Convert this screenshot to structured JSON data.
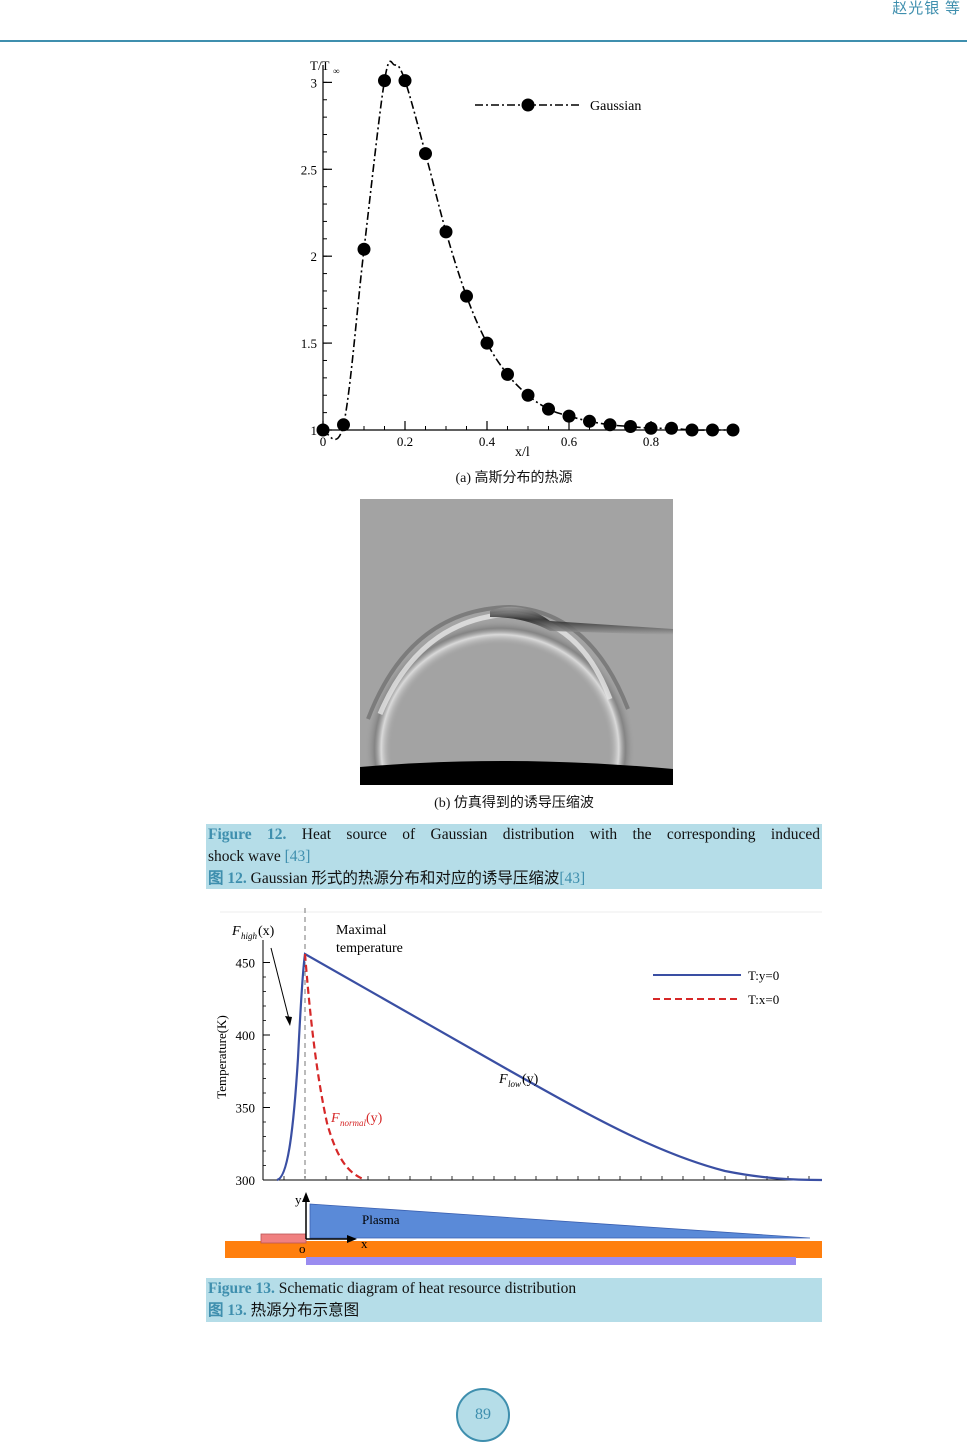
{
  "header": {
    "author": "赵光银 等"
  },
  "figure12": {
    "subplot_a": {
      "ylabel_main": "T/T",
      "ylabel_sub": "∞",
      "xlabel": "x/l",
      "legend": "Gaussian",
      "yticks": [
        "3",
        "2.5",
        "2",
        "1.5",
        "1"
      ],
      "xticks": [
        "0",
        "0.2",
        "0.4",
        "0.6",
        "0.8"
      ],
      "caption": "(a)  高斯分布的热源"
    },
    "subplot_b": {
      "caption": "(b)  仿真得到的诱导压缩波"
    },
    "caption_en_label": "Figure 12.",
    "caption_en_text": " Heat source of Gaussian distribution with the corresponding induced",
    "caption_en_text2": "shock wave ",
    "caption_en_ref": "[43]",
    "caption_cn_label": "图 12.",
    "caption_cn_text": " Gaussian 形式的热源分布和对应的诱导压缩波",
    "caption_cn_ref": "[43]"
  },
  "figure13": {
    "ylabel": "Temperature(K)",
    "yticks": [
      "450",
      "400",
      "350",
      "300"
    ],
    "legend": [
      "T:y=0",
      "T:x=0"
    ],
    "ann_fhigh": "F",
    "ann_fhigh_sub": "high",
    "ann_fhigh_arg": "(x)",
    "ann_max1": "Maximal",
    "ann_max2": "temperature",
    "ann_flow": "F",
    "ann_flow_sub": "low",
    "ann_flow_arg": "(y)",
    "ann_fnormal": "F",
    "ann_fnormal_sub": "normal",
    "ann_fnormal_arg": "(y)",
    "schem_y": "y",
    "schem_x": "x",
    "schem_o": "o",
    "schem_plasma": "Plasma",
    "caption_en_label": "Figure 13.",
    "caption_en_text": " Schematic diagram of heat resource distribution",
    "caption_cn_label": "图 13.",
    "caption_cn_text": "  热源分布示意图"
  },
  "page_number": "89",
  "chart_data": [
    {
      "type": "line",
      "x": [
        0,
        0.05,
        0.1,
        0.15,
        0.2,
        0.25,
        0.3,
        0.35,
        0.4,
        0.45,
        0.5,
        0.55,
        0.6,
        0.65,
        0.7,
        0.75,
        0.8,
        0.85,
        0.9,
        0.95,
        1.0
      ],
      "series": [
        {
          "name": "Gaussian",
          "values": [
            1.0,
            1.03,
            2.04,
            3.01,
            3.01,
            2.59,
            2.14,
            1.77,
            1.5,
            1.32,
            1.2,
            1.12,
            1.08,
            1.05,
            1.03,
            1.02,
            1.01,
            1.01,
            1.0,
            1.0,
            1.0
          ]
        }
      ],
      "xlabel": "x/l",
      "ylabel": "T/T∞",
      "xlim": [
        0,
        1.0
      ],
      "ylim": [
        1,
        3.1
      ],
      "legend": "top-right"
    },
    {
      "type": "line",
      "ylabel": "Temperature(K)",
      "ylim": [
        300,
        460
      ],
      "series": [
        {
          "name": "T:y=0",
          "color": "#3a4fa3"
        },
        {
          "name": "T:x=0",
          "color": "#d62828",
          "dashed": true
        }
      ],
      "legend": "top-right"
    }
  ]
}
